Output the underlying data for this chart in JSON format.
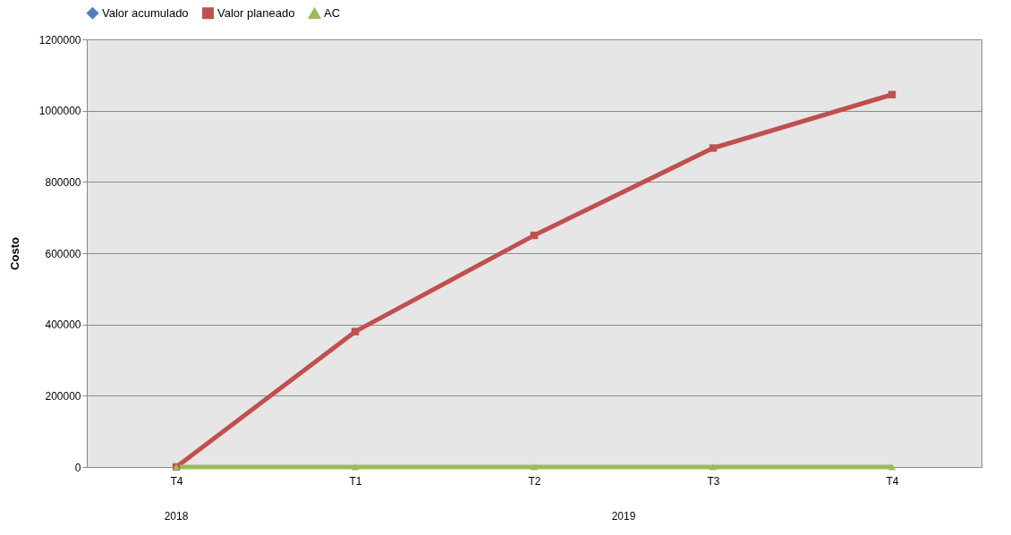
{
  "chart_data": {
    "type": "line",
    "ylabel": "Costo",
    "categories": [
      "T4",
      "T1",
      "T2",
      "T3",
      "T4"
    ],
    "series": [
      {
        "name": "Valor acumulado",
        "color": "#4f81bd",
        "marker": "diamond",
        "values": [
          null,
          null,
          null,
          null,
          null
        ]
      },
      {
        "name": "Valor planeado",
        "color": "#c0504d",
        "marker": "square",
        "values": [
          0,
          380000,
          650000,
          895000,
          1045000
        ]
      },
      {
        "name": "AC",
        "color": "#9bbb59",
        "marker": "triangle",
        "values": [
          0,
          0,
          0,
          0,
          0
        ]
      }
    ],
    "ylim": [
      0,
      1200000
    ],
    "yticks": [
      0,
      200000,
      400000,
      600000,
      800000,
      1000000,
      1200000
    ],
    "grid": "y",
    "legend": "top",
    "line_style": "solid",
    "annotations": [
      "2018",
      "2019"
    ]
  }
}
